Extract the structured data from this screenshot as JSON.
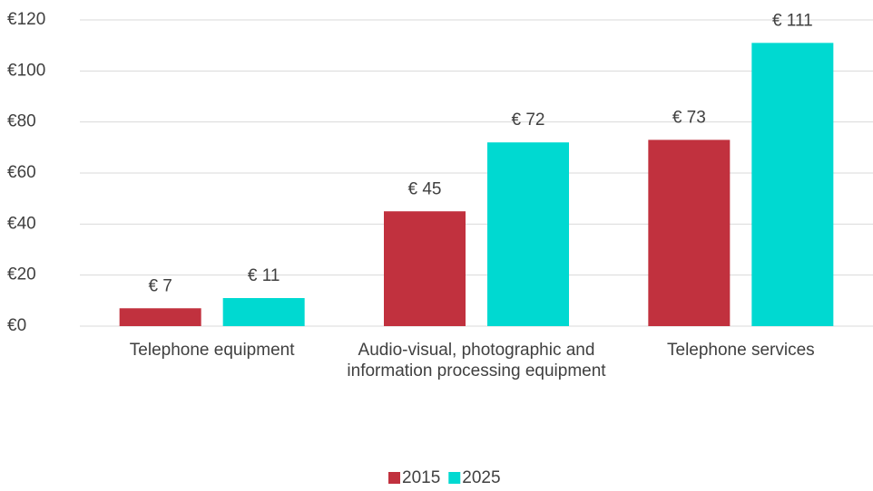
{
  "chart_data": {
    "type": "bar",
    "categories": [
      "Telephone equipment",
      "Audio-visual, photographic and information processing equipment",
      "Telephone services"
    ],
    "series": [
      {
        "name": "2015",
        "color": "#c1313e",
        "values": [
          7,
          45,
          73
        ],
        "value_labels": [
          "€ 7",
          "€ 45",
          "€ 73"
        ]
      },
      {
        "name": "2025",
        "color": "#00d9d1",
        "values": [
          11,
          72,
          111
        ],
        "value_labels": [
          "€ 11",
          "€ 72",
          "€ 111"
        ]
      }
    ],
    "ylim": [
      0,
      120
    ],
    "yticks": [
      {
        "value": 0,
        "label": "€0"
      },
      {
        "value": 20,
        "label": "€20"
      },
      {
        "value": 40,
        "label": "€40"
      },
      {
        "value": 60,
        "label": "€60"
      },
      {
        "value": 80,
        "label": "€80"
      },
      {
        "value": 100,
        "label": "€100"
      },
      {
        "value": 120,
        "label": "€120"
      }
    ],
    "grid": true,
    "legend": "bottom"
  }
}
